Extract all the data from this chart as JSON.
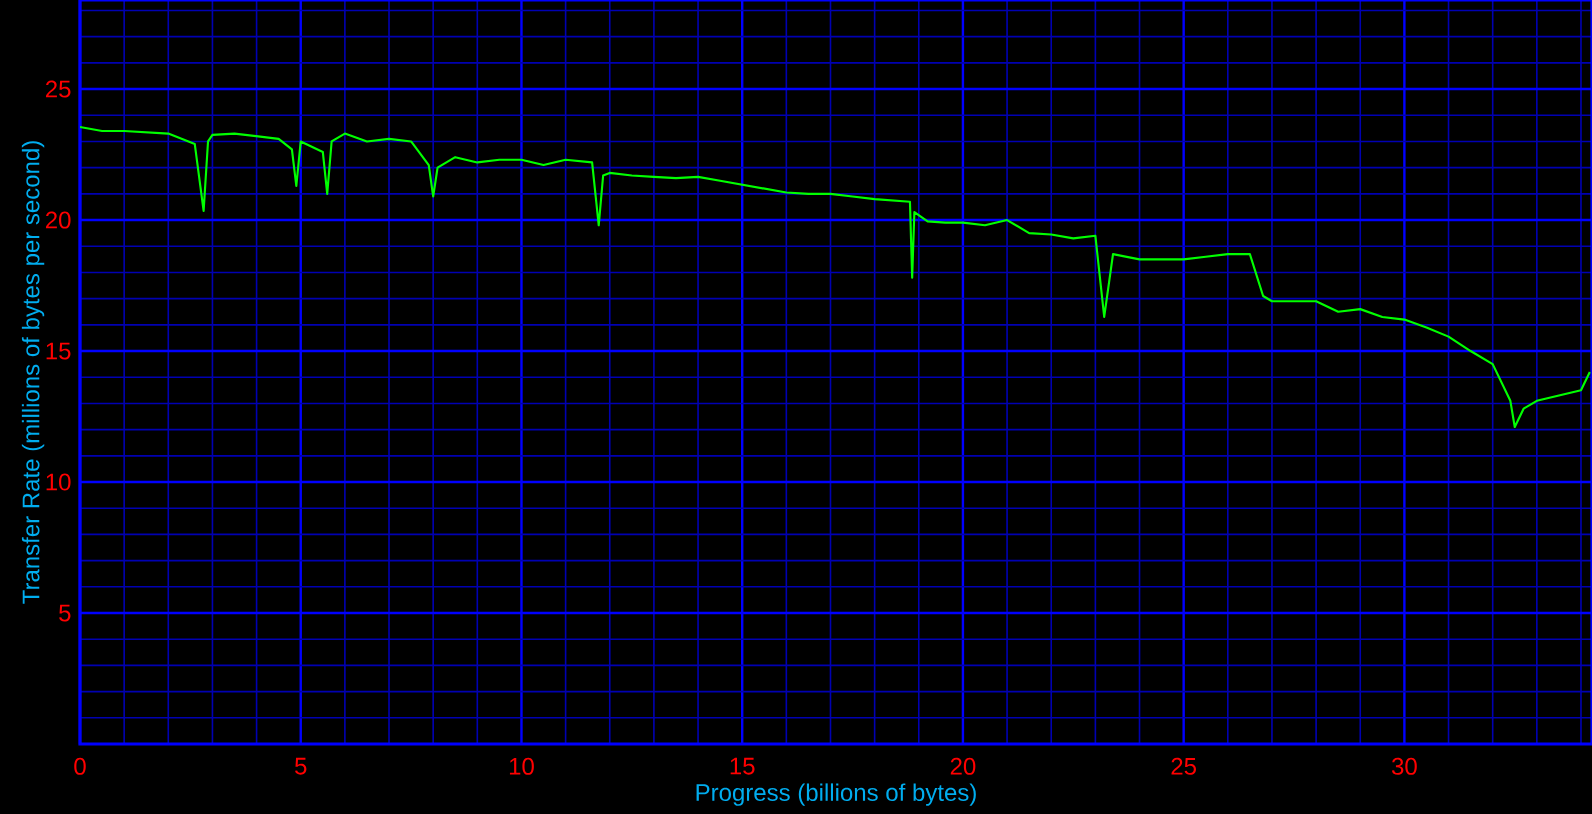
{
  "chart_data": {
    "type": "line",
    "xlabel": "Progress (billions of bytes)",
    "ylabel": "Transfer Rate (millions of bytes per second)",
    "xlim": [
      0,
      34.25
    ],
    "ylim": [
      0,
      28.4
    ],
    "xticks": [
      0,
      {
        "value": 1,
        "label": null
      },
      {
        "value": 2,
        "label": null
      },
      {
        "value": 3,
        "label": null
      },
      {
        "value": 4,
        "label": null
      },
      5,
      {
        "value": 6,
        "label": null
      },
      {
        "value": 7,
        "label": null
      },
      {
        "value": 8,
        "label": null
      },
      {
        "value": 9,
        "label": null
      },
      10,
      {
        "value": 11,
        "label": null
      },
      {
        "value": 12,
        "label": null
      },
      {
        "value": 13,
        "label": null
      },
      {
        "value": 14,
        "label": null
      },
      15,
      {
        "value": 16,
        "label": null
      },
      {
        "value": 17,
        "label": null
      },
      {
        "value": 18,
        "label": null
      },
      {
        "value": 19,
        "label": null
      },
      20,
      {
        "value": 21,
        "label": null
      },
      {
        "value": 22,
        "label": null
      },
      {
        "value": 23,
        "label": null
      },
      {
        "value": 24,
        "label": null
      },
      25,
      {
        "value": 26,
        "label": null
      },
      {
        "value": 27,
        "label": null
      },
      {
        "value": 28,
        "label": null
      },
      {
        "value": 29,
        "label": null
      },
      30,
      {
        "value": 31,
        "label": null
      },
      {
        "value": 32,
        "label": null
      },
      {
        "value": 33,
        "label": null
      },
      {
        "value": 34,
        "label": null
      }
    ],
    "yticks": [
      {
        "value": 1,
        "label": null
      },
      {
        "value": 2,
        "label": null
      },
      {
        "value": 3,
        "label": null
      },
      {
        "value": 4,
        "label": null
      },
      5,
      {
        "value": 6,
        "label": null
      },
      {
        "value": 7,
        "label": null
      },
      {
        "value": 8,
        "label": null
      },
      {
        "value": 9,
        "label": null
      },
      10,
      {
        "value": 11,
        "label": null
      },
      {
        "value": 12,
        "label": null
      },
      {
        "value": 13,
        "label": null
      },
      {
        "value": 14,
        "label": null
      },
      15,
      {
        "value": 16,
        "label": null
      },
      {
        "value": 17,
        "label": null
      },
      {
        "value": 18,
        "label": null
      },
      {
        "value": 19,
        "label": null
      },
      20,
      {
        "value": 21,
        "label": null
      },
      {
        "value": 22,
        "label": null
      },
      {
        "value": 23,
        "label": null
      },
      {
        "value": 24,
        "label": null
      },
      25,
      {
        "value": 26,
        "label": null
      },
      {
        "value": 27,
        "label": null
      },
      {
        "value": 28,
        "label": null
      }
    ],
    "grid": true,
    "marker": "none",
    "line_style": "solid",
    "series": [
      {
        "color": "#00ff00",
        "x": [
          0,
          0.5,
          1,
          1.5,
          2,
          2.6,
          2.8,
          2.9,
          3,
          3.5,
          4,
          4.5,
          4.8,
          4.9,
          5.0,
          5.5,
          5.6,
          5.7,
          6,
          6.5,
          7,
          7.5,
          7.9,
          8.0,
          8.1,
          8.5,
          9,
          9.5,
          10,
          10.5,
          11,
          11.6,
          11.75,
          11.85,
          12,
          12.5,
          13,
          13.5,
          14,
          14.5,
          15,
          15.5,
          16,
          16.5,
          17,
          17.5,
          18,
          18.8,
          18.85,
          18.9,
          19.2,
          19.6,
          20,
          20.5,
          21,
          21.5,
          22,
          22.5,
          23,
          23.2,
          23.4,
          24,
          24.5,
          25,
          25.5,
          26,
          26.5,
          26.8,
          27,
          27.5,
          28,
          28.5,
          29,
          29.5,
          30,
          30.5,
          31,
          31.5,
          32,
          32.4,
          32.5,
          32.7,
          33,
          33.5,
          34,
          34.2
        ],
        "values": [
          23.55,
          23.4,
          23.4,
          23.35,
          23.3,
          22.9,
          20.35,
          23.0,
          23.25,
          23.3,
          23.2,
          23.1,
          22.7,
          21.3,
          23.0,
          22.6,
          21.0,
          23.0,
          23.3,
          23.0,
          23.1,
          23.0,
          22.1,
          20.9,
          22.0,
          22.4,
          22.2,
          22.3,
          22.3,
          22.1,
          22.3,
          22.2,
          19.8,
          21.7,
          21.8,
          21.7,
          21.65,
          21.6,
          21.65,
          21.5,
          21.35,
          21.2,
          21.05,
          21.0,
          21.0,
          20.9,
          20.8,
          20.7,
          17.8,
          20.3,
          19.95,
          19.9,
          19.9,
          19.8,
          20.0,
          19.5,
          19.45,
          19.3,
          19.4,
          16.3,
          18.7,
          18.5,
          18.5,
          18.5,
          18.6,
          18.7,
          18.7,
          17.1,
          16.9,
          16.9,
          16.9,
          16.5,
          16.6,
          16.3,
          16.2,
          15.9,
          15.55,
          15.0,
          14.5,
          13.1,
          12.1,
          12.8,
          13.1,
          13.3,
          13.5,
          14.2
        ]
      }
    ]
  }
}
